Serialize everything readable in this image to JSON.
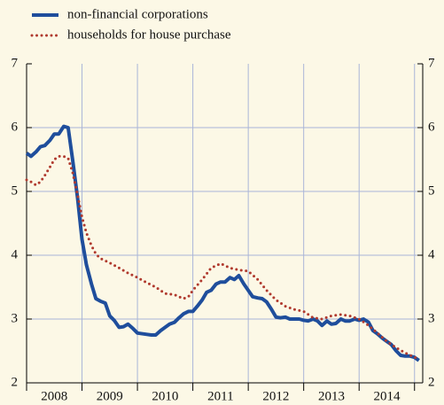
{
  "chart_data": {
    "type": "line",
    "series": [
      {
        "name": "non-financial corporations",
        "color": "#1f4e9c",
        "style": "solid",
        "x": [
          2008.0,
          2008.08,
          2008.17,
          2008.25,
          2008.33,
          2008.42,
          2008.5,
          2008.58,
          2008.67,
          2008.75,
          2008.83,
          2008.92,
          2009.0,
          2009.08,
          2009.17,
          2009.25,
          2009.33,
          2009.42,
          2009.5,
          2009.58,
          2009.67,
          2009.75,
          2009.83,
          2009.92,
          2010.0,
          2010.17,
          2010.25,
          2010.33,
          2010.42,
          2010.5,
          2010.58,
          2010.67,
          2010.75,
          2010.83,
          2010.92,
          2011.0,
          2011.08,
          2011.17,
          2011.25,
          2011.33,
          2011.42,
          2011.5,
          2011.58,
          2011.67,
          2011.75,
          2011.83,
          2011.92,
          2012.0,
          2012.08,
          2012.17,
          2012.25,
          2012.33,
          2012.42,
          2012.5,
          2012.58,
          2012.67,
          2012.75,
          2012.83,
          2012.92,
          2013.0,
          2013.08,
          2013.17,
          2013.25,
          2013.33,
          2013.42,
          2013.5,
          2013.58,
          2013.67,
          2013.75,
          2013.83,
          2013.92,
          2014.0,
          2014.08,
          2014.17,
          2014.25,
          2014.33,
          2014.42,
          2014.5,
          2014.58,
          2014.67,
          2014.75,
          2014.83,
          2014.92,
          2015.0,
          2015.08
        ],
        "values": [
          5.6,
          5.55,
          5.62,
          5.7,
          5.72,
          5.8,
          5.9,
          5.9,
          6.02,
          6.0,
          5.5,
          4.9,
          4.25,
          3.85,
          3.55,
          3.32,
          3.28,
          3.25,
          3.05,
          2.98,
          2.87,
          2.88,
          2.92,
          2.85,
          2.78,
          2.76,
          2.75,
          2.75,
          2.82,
          2.87,
          2.92,
          2.95,
          3.02,
          3.08,
          3.12,
          3.12,
          3.2,
          3.3,
          3.42,
          3.45,
          3.55,
          3.58,
          3.58,
          3.65,
          3.62,
          3.68,
          3.55,
          3.45,
          3.35,
          3.33,
          3.32,
          3.27,
          3.15,
          3.03,
          3.02,
          3.03,
          3.0,
          3.0,
          3.0,
          2.98,
          2.97,
          3.0,
          2.97,
          2.9,
          2.97,
          2.92,
          2.93,
          3.0,
          2.97,
          2.97,
          3.0,
          2.98,
          3.0,
          2.95,
          2.82,
          2.77,
          2.7,
          2.65,
          2.6,
          2.5,
          2.43,
          2.42,
          2.42,
          2.4,
          2.35
        ]
      },
      {
        "name": "households for house purchase",
        "color": "#b03a2e",
        "style": "dotted",
        "x": [
          2008.0,
          2008.08,
          2008.17,
          2008.25,
          2008.33,
          2008.42,
          2008.5,
          2008.58,
          2008.67,
          2008.75,
          2008.83,
          2008.92,
          2009.0,
          2009.08,
          2009.17,
          2009.25,
          2009.33,
          2009.5,
          2009.67,
          2009.83,
          2010.0,
          2010.17,
          2010.33,
          2010.5,
          2010.67,
          2010.83,
          2010.92,
          2011.0,
          2011.17,
          2011.33,
          2011.5,
          2011.67,
          2011.83,
          2012.0,
          2012.17,
          2012.33,
          2012.5,
          2012.67,
          2012.83,
          2013.0,
          2013.17,
          2013.33,
          2013.5,
          2013.67,
          2013.83,
          2014.0,
          2014.17,
          2014.33,
          2014.5,
          2014.67,
          2014.83,
          2015.0,
          2015.08
        ],
        "values": [
          5.18,
          5.15,
          5.1,
          5.15,
          5.25,
          5.38,
          5.5,
          5.55,
          5.55,
          5.52,
          5.3,
          4.95,
          4.6,
          4.35,
          4.15,
          4.02,
          3.95,
          3.88,
          3.8,
          3.72,
          3.65,
          3.57,
          3.5,
          3.4,
          3.38,
          3.32,
          3.35,
          3.45,
          3.62,
          3.8,
          3.87,
          3.8,
          3.77,
          3.75,
          3.62,
          3.45,
          3.3,
          3.2,
          3.15,
          3.12,
          3.02,
          3.0,
          3.05,
          3.07,
          3.05,
          3.0,
          2.9,
          2.78,
          2.65,
          2.55,
          2.47,
          2.4,
          2.38
        ]
      }
    ],
    "xlim": [
      2008,
      2015.1
    ],
    "xticks": [
      2008,
      2009,
      2010,
      2011,
      2012,
      2013,
      2014,
      2015
    ],
    "xlabels": [
      {
        "value": 2008.5,
        "label": "2008"
      },
      {
        "value": 2009.5,
        "label": "2009"
      },
      {
        "value": 2010.5,
        "label": "2010"
      },
      {
        "value": 2011.5,
        "label": "2011"
      },
      {
        "value": 2012.5,
        "label": "2012"
      },
      {
        "value": 2013.5,
        "label": "2013"
      },
      {
        "value": 2014.5,
        "label": "2014"
      }
    ],
    "ylim": [
      2,
      7
    ],
    "yticks": [
      2,
      3,
      4,
      5,
      6,
      7
    ],
    "y2lim": [
      2,
      7
    ],
    "y2ticks": [
      2,
      3,
      4,
      5,
      6,
      7
    ],
    "grid": true,
    "grid_color": "#a9b5d8"
  }
}
